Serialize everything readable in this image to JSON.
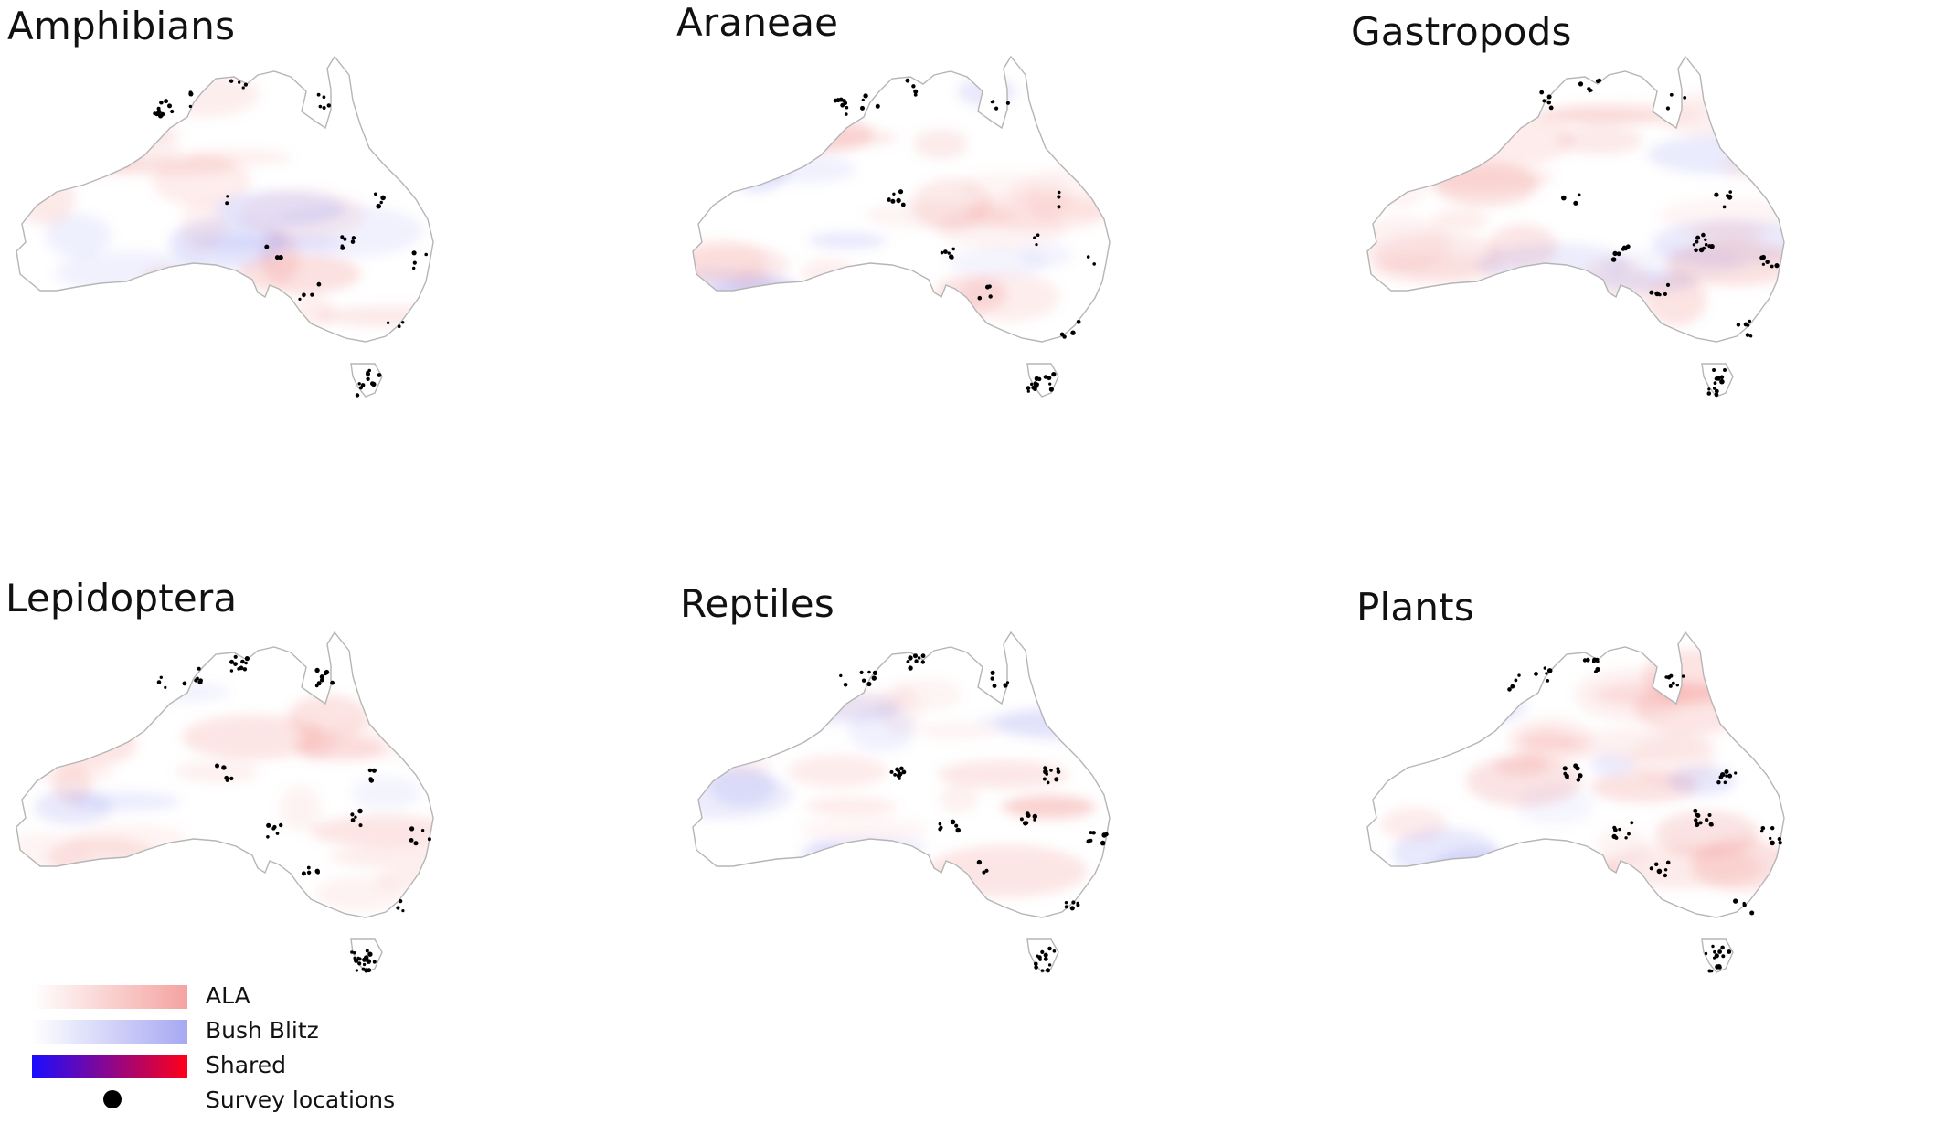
{
  "panels": [
    {
      "title": "Amphibians"
    },
    {
      "title": "Araneae"
    },
    {
      "title": "Gastropods"
    },
    {
      "title": "Lepidoptera"
    },
    {
      "title": "Reptiles"
    },
    {
      "title": "Plants"
    }
  ],
  "legend": {
    "items": [
      {
        "label": "ALA",
        "gradient": [
          "#ffffff",
          "#f4a3a0"
        ]
      },
      {
        "label": "Bush Blitz",
        "gradient": [
          "#ffffff",
          "#a6a8f2"
        ]
      },
      {
        "label": "Shared",
        "gradient": [
          "#1a0dff",
          "#ff0018"
        ]
      },
      {
        "label": "Survey locations",
        "symbol": "black-dot"
      }
    ]
  },
  "colors": {
    "ala": "#f08a86",
    "bush_blitz": "#8d8ff0",
    "survey": "#000000",
    "coastline": "#b5b5b5"
  }
}
